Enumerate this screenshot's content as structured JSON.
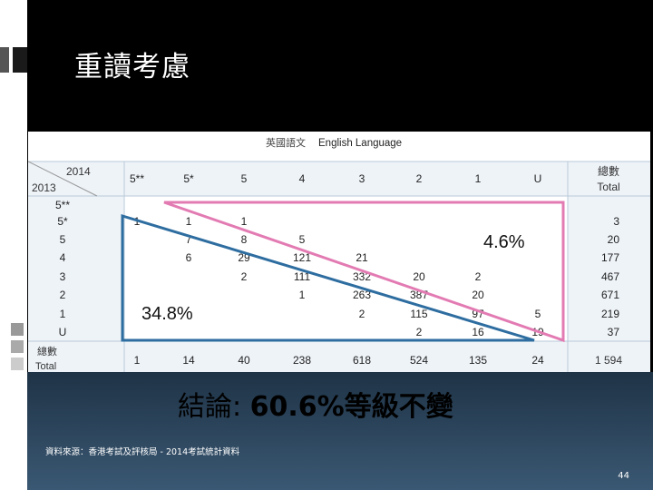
{
  "slide": {
    "title": "重讀考慮",
    "page_number": "44"
  },
  "table": {
    "title_zh": "英國語文",
    "title_en": "English Language",
    "corner_col_year": "2014",
    "corner_row_year": "2013",
    "column_headers": [
      "5**",
      "5*",
      "5",
      "4",
      "3",
      "2",
      "1",
      "U"
    ],
    "total_header_zh": "總數",
    "total_header_en": "Total",
    "row_headers": [
      "5**",
      "5*",
      "5",
      "4",
      "3",
      "2",
      "1",
      "U"
    ],
    "cells": [
      [
        "",
        "",
        "",
        "",
        "",
        "",
        "",
        ""
      ],
      [
        "1",
        "1",
        "1",
        "",
        "",
        "",
        "",
        ""
      ],
      [
        "",
        "7",
        "8",
        "5",
        "",
        "",
        "",
        ""
      ],
      [
        "",
        "6",
        "29",
        "121",
        "21",
        "",
        "",
        ""
      ],
      [
        "",
        "",
        "2",
        "111",
        "332",
        "20",
        "2",
        ""
      ],
      [
        "",
        "",
        "",
        "1",
        "263",
        "387",
        "20",
        ""
      ],
      [
        "",
        "",
        "",
        "",
        "2",
        "115",
        "97",
        "5"
      ],
      [
        "",
        "",
        "",
        "",
        "",
        "2",
        "16",
        "19"
      ]
    ],
    "row_totals": [
      "",
      "3",
      "20",
      "177",
      "467",
      "671",
      "219",
      "37"
    ],
    "total_row_zh": "總數",
    "total_row_en": "Total",
    "column_totals": [
      "1",
      "14",
      "40",
      "238",
      "618",
      "524",
      "135",
      "24"
    ],
    "grand_total": "1 594",
    "upper_percent": "4.6%",
    "lower_percent": "34.8%",
    "colors": {
      "upper_triangle": "#e37bb3",
      "lower_triangle": "#2e6da0",
      "grid": "#b9c9d8"
    }
  },
  "conclusion": {
    "prefix": "結論: ",
    "highlight": "60.6%等級不變"
  },
  "source_note": "資料來源：香港考試及評核局 - 2014考試統計資料"
}
